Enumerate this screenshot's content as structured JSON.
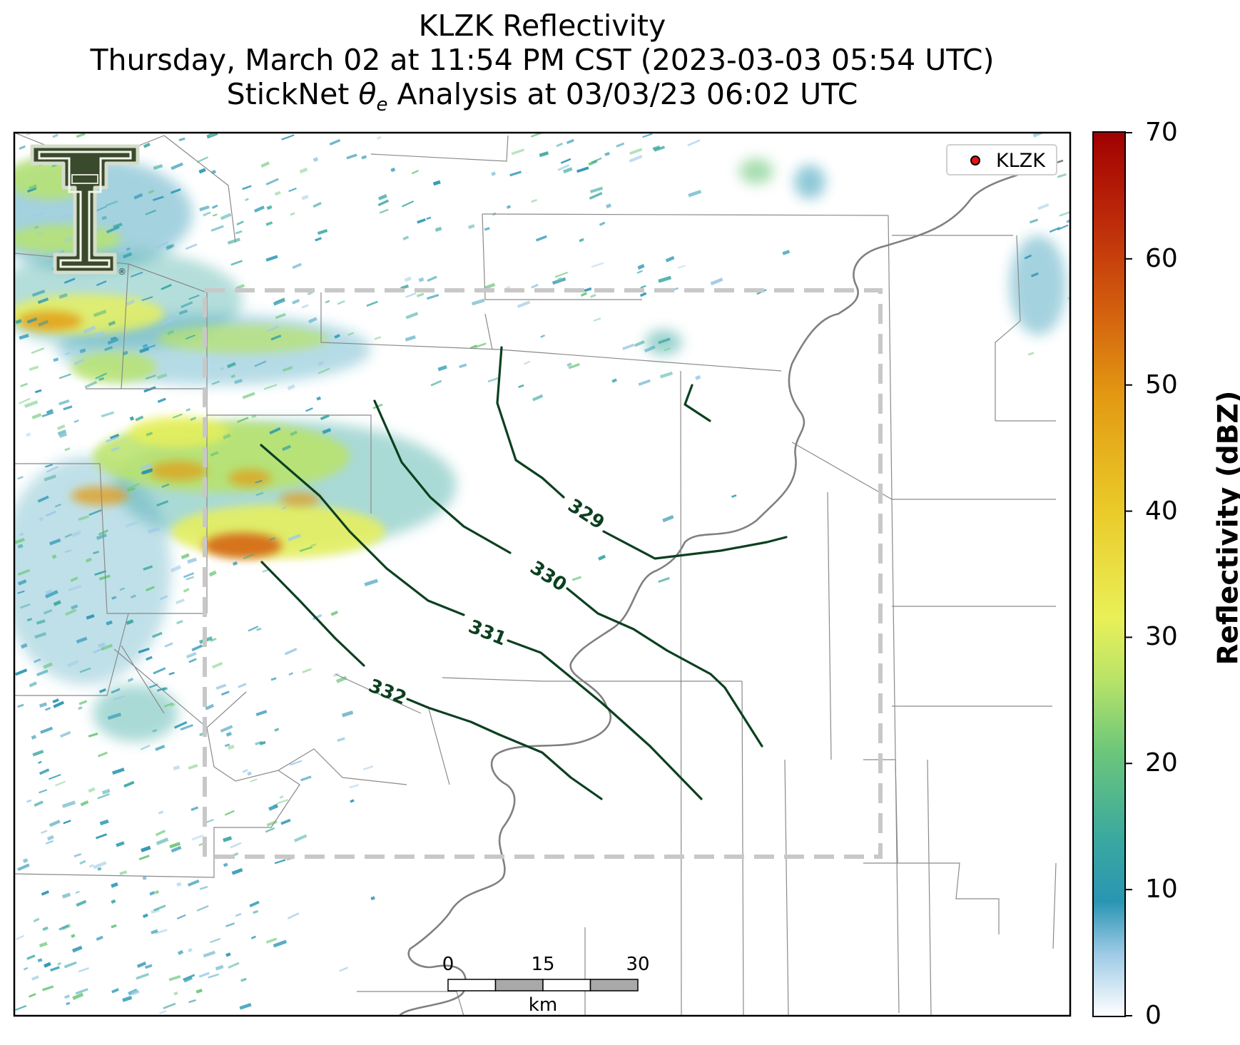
{
  "title": {
    "line1": "KLZK Reflectivity",
    "line2": "Thursday, March 02 at 11:54 PM CST (2023-03-03 05:54 UTC)",
    "line3_before": "StickNet ",
    "line3_symbol": "θ",
    "line3_subscript": "e",
    "line3_after": " Analysis at 03/03/23 06:02 UTC"
  },
  "legend": {
    "label": "KLZK",
    "marker_color": "#ee1111"
  },
  "colorbar": {
    "title": "Reflectivity (dBZ)",
    "ticks": [
      "0",
      "10",
      "20",
      "30",
      "40",
      "50",
      "60",
      "70"
    ],
    "min": 0,
    "max": 70,
    "colors": [
      "#ffffff",
      "#9fcbe6",
      "#2a95b3",
      "#3aa8a0",
      "#6cc77a",
      "#b8e368",
      "#e9f058",
      "#eacb2a",
      "#e39a12",
      "#d35e0e",
      "#bd2a0a",
      "#a00000"
    ]
  },
  "contours": {
    "color": "#0c4020",
    "labels": [
      "329",
      "330",
      "331",
      "332"
    ]
  },
  "scale_bar": {
    "unit": "km",
    "ticks": [
      "0",
      "15",
      "30"
    ]
  },
  "logo": {
    "icon": "double-t-logo",
    "registered_mark": "®"
  }
}
